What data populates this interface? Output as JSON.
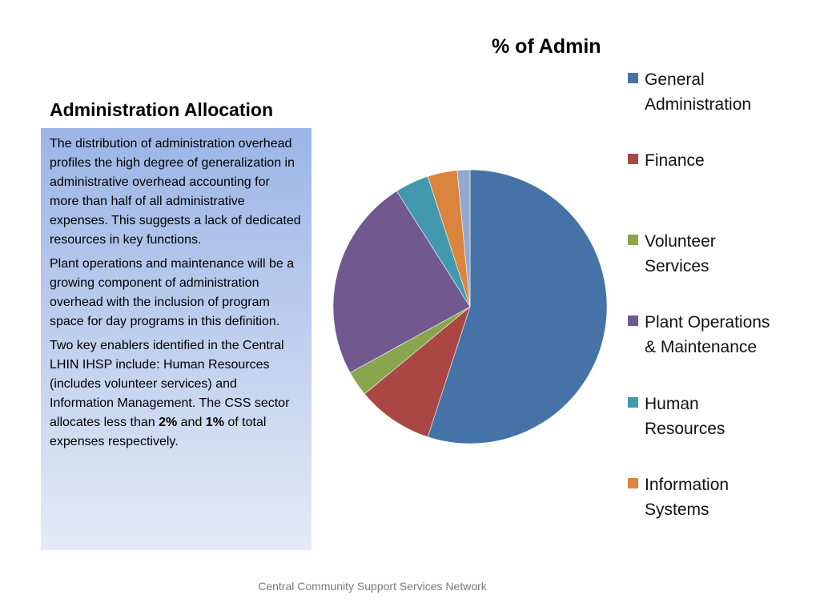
{
  "slide": {
    "heading": "Administration Allocation",
    "paragraphs": [
      "The distribution of administration overhead profiles the high degree of generalization in administrative overhead accounting for more than half of all administrative expenses.  This suggests a lack of dedicated resources in key functions.",
      "Plant operations and maintenance will be a growing component of administration overhead with the inclusion of program space for day programs in this definition."
    ],
    "paragraph3": {
      "text_a": "Two key enablers identified in the Central LHIN IHSP include:  Human Resources (includes volunteer services)  and Information Management.  The CSS sector allocates less than ",
      "bold_a": "2%",
      "text_b": " and ",
      "bold_b": "1%",
      "text_c": " of total expenses respectively."
    },
    "footer": "Central Community Support Services Network"
  },
  "chart_data": {
    "type": "pie",
    "title": "% of Admin",
    "legend_position": "right",
    "slices": [
      {
        "name": "General Administration",
        "value": 55,
        "color": "#4573a7"
      },
      {
        "name": "Finance",
        "value": 9,
        "color": "#aa4643"
      },
      {
        "name": "Volunteer Services",
        "value": 3,
        "color": "#89a54e"
      },
      {
        "name": "Plant Operations & Maintenance",
        "value": 24,
        "color": "#71588f"
      },
      {
        "name": "Human Resources",
        "value": 4,
        "color": "#4198af"
      },
      {
        "name": "Information Systems",
        "value": 3.5,
        "color": "#db843d"
      },
      {
        "name": "",
        "value": 1.5,
        "color": "#93a9cf"
      }
    ]
  }
}
